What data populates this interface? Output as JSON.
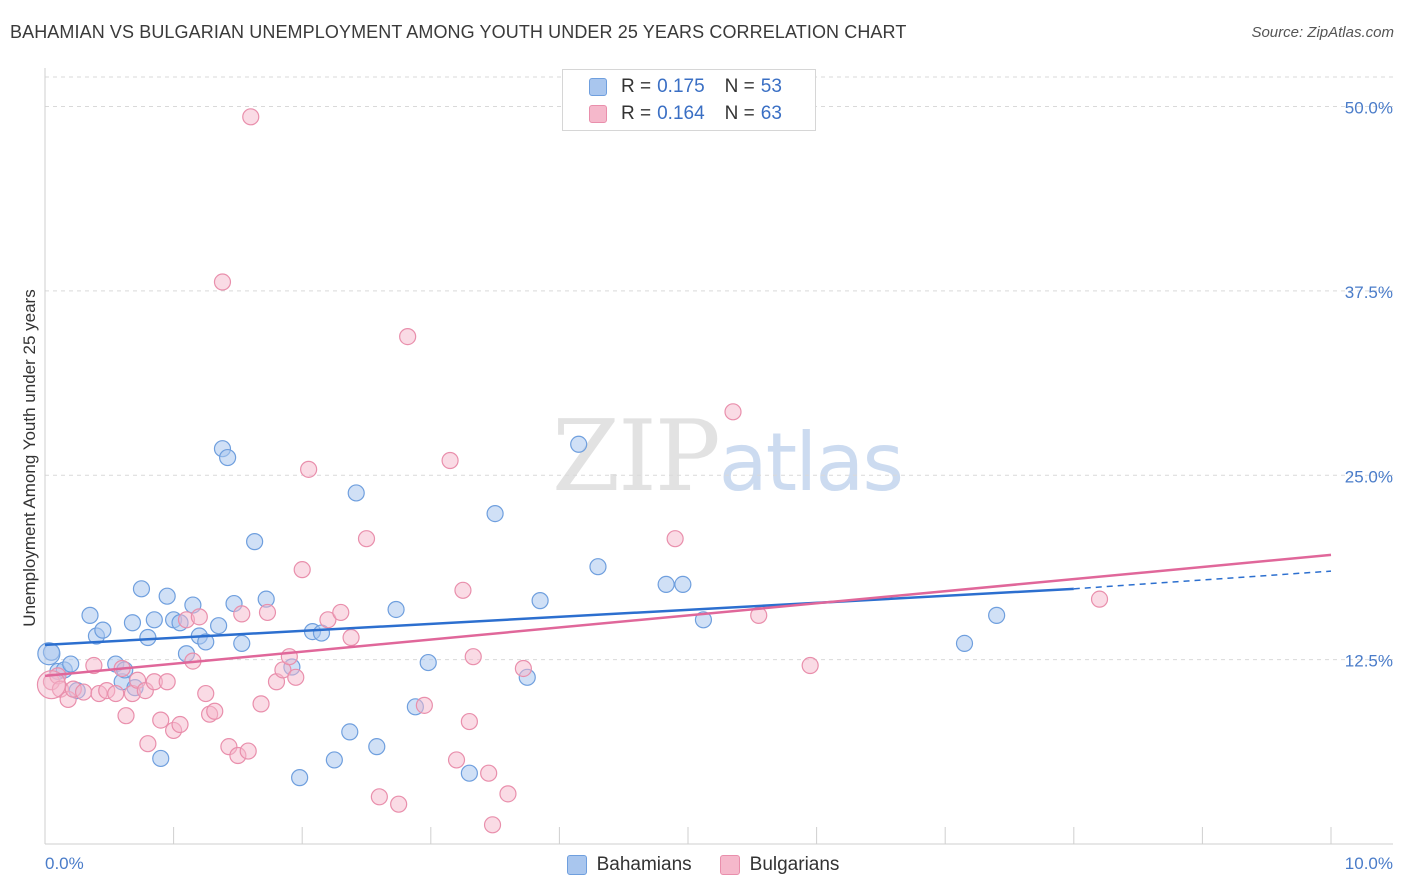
{
  "header": {
    "title": "BAHAMIAN VS BULGARIAN UNEMPLOYMENT AMONG YOUTH UNDER 25 YEARS CORRELATION CHART",
    "source": "Source: ZipAtlas.com"
  },
  "watermark": {
    "zip": "ZIP",
    "atlas": "atlas"
  },
  "legend_top": {
    "rows": [
      {
        "r_label": "R =",
        "r_value": "0.175",
        "n_label": "N =",
        "n_value": "53"
      },
      {
        "r_label": "R =",
        "r_value": "0.164",
        "n_label": "N =",
        "n_value": "63"
      }
    ]
  },
  "legend_bottom": {
    "items": [
      "Bahamians",
      "Bulgarians"
    ]
  },
  "colors": {
    "blue_fill": "#a9c6ee",
    "blue_stroke": "#6f9fde",
    "blue_line": "#2c6fcf",
    "pink_fill": "#f5b8cb",
    "pink_stroke": "#e98fac",
    "pink_line": "#e0679a",
    "tick_text": "#4a7cc9",
    "grid": "#d9d9d9"
  },
  "chart_data": {
    "type": "scatter",
    "title": "BAHAMIAN VS BULGARIAN UNEMPLOYMENT AMONG YOUTH UNDER 25 YEARS CORRELATION CHART",
    "xlabel": "",
    "ylabel": "Unemployment Among Youth under 25 years",
    "xlim": [
      0,
      10
    ],
    "ylim": [
      0,
      52
    ],
    "x_tick_labels": [
      "0.0%",
      "10.0%"
    ],
    "y_ticks": [
      12.5,
      25.0,
      37.5,
      50.0
    ],
    "y_tick_labels": [
      "12.5%",
      "25.0%",
      "37.5%",
      "50.0%"
    ],
    "legend_position": "top-center",
    "series": [
      {
        "name": "Bahamians",
        "r": 0.175,
        "n": 53,
        "trend": {
          "x0": 0,
          "y0": 13.5,
          "x1": 8.0,
          "y1": 17.3,
          "dash_to_x": 10,
          "dash_to_y": 18.5
        },
        "points": [
          [
            0.05,
            13.0
          ],
          [
            0.1,
            11.7
          ],
          [
            0.15,
            11.8
          ],
          [
            0.2,
            12.2
          ],
          [
            0.25,
            10.4
          ],
          [
            0.35,
            15.5
          ],
          [
            0.4,
            14.1
          ],
          [
            0.45,
            14.5
          ],
          [
            0.55,
            12.2
          ],
          [
            0.6,
            11.0
          ],
          [
            0.62,
            11.8
          ],
          [
            0.68,
            15.0
          ],
          [
            0.75,
            17.3
          ],
          [
            0.8,
            14.0
          ],
          [
            0.85,
            15.2
          ],
          [
            0.9,
            5.8
          ],
          [
            0.95,
            16.8
          ],
          [
            1.0,
            15.2
          ],
          [
            1.05,
            15.0
          ],
          [
            1.1,
            12.9
          ],
          [
            1.15,
            16.2
          ],
          [
            1.2,
            14.1
          ],
          [
            1.25,
            13.7
          ],
          [
            1.35,
            14.8
          ],
          [
            1.38,
            26.8
          ],
          [
            1.42,
            26.2
          ],
          [
            1.47,
            16.3
          ],
          [
            1.53,
            13.6
          ],
          [
            1.63,
            20.5
          ],
          [
            1.72,
            16.6
          ],
          [
            1.92,
            12.0
          ],
          [
            1.98,
            4.5
          ],
          [
            2.08,
            14.4
          ],
          [
            2.15,
            14.3
          ],
          [
            2.25,
            5.7
          ],
          [
            2.37,
            7.6
          ],
          [
            2.42,
            23.8
          ],
          [
            2.58,
            6.6
          ],
          [
            2.73,
            15.9
          ],
          [
            2.88,
            9.3
          ],
          [
            2.98,
            12.3
          ],
          [
            3.3,
            4.8
          ],
          [
            3.5,
            22.4
          ],
          [
            3.75,
            11.3
          ],
          [
            3.85,
            16.5
          ],
          [
            4.15,
            27.1
          ],
          [
            4.3,
            18.8
          ],
          [
            4.83,
            17.6
          ],
          [
            4.96,
            17.6
          ],
          [
            5.12,
            15.2
          ],
          [
            7.15,
            13.6
          ],
          [
            7.4,
            15.5
          ],
          [
            0.7,
            10.6
          ]
        ]
      },
      {
        "name": "Bulgarians",
        "r": 0.164,
        "n": 63,
        "trend": {
          "x0": 0,
          "y0": 11.4,
          "x1": 10,
          "y1": 19.6
        },
        "points": [
          [
            0.05,
            11.0
          ],
          [
            0.1,
            11.4
          ],
          [
            0.12,
            10.5
          ],
          [
            0.18,
            9.8
          ],
          [
            0.22,
            10.5
          ],
          [
            0.3,
            10.3
          ],
          [
            0.38,
            12.1
          ],
          [
            0.42,
            10.2
          ],
          [
            0.48,
            10.4
          ],
          [
            0.55,
            10.2
          ],
          [
            0.6,
            11.9
          ],
          [
            0.63,
            8.7
          ],
          [
            0.68,
            10.2
          ],
          [
            0.72,
            11.1
          ],
          [
            0.78,
            10.4
          ],
          [
            0.8,
            6.8
          ],
          [
            0.85,
            11.0
          ],
          [
            0.9,
            8.4
          ],
          [
            0.95,
            11.0
          ],
          [
            1.0,
            7.7
          ],
          [
            1.05,
            8.1
          ],
          [
            1.1,
            15.2
          ],
          [
            1.15,
            12.4
          ],
          [
            1.2,
            15.4
          ],
          [
            1.25,
            10.2
          ],
          [
            1.28,
            8.8
          ],
          [
            1.32,
            9.0
          ],
          [
            1.38,
            38.1
          ],
          [
            1.43,
            6.6
          ],
          [
            1.5,
            6.0
          ],
          [
            1.53,
            15.6
          ],
          [
            1.58,
            6.3
          ],
          [
            1.6,
            49.3
          ],
          [
            1.68,
            9.5
          ],
          [
            1.73,
            15.7
          ],
          [
            1.8,
            11.0
          ],
          [
            1.85,
            11.8
          ],
          [
            1.9,
            12.7
          ],
          [
            1.95,
            11.3
          ],
          [
            2.0,
            18.6
          ],
          [
            2.05,
            25.4
          ],
          [
            2.2,
            15.2
          ],
          [
            2.3,
            15.7
          ],
          [
            2.38,
            14.0
          ],
          [
            2.5,
            20.7
          ],
          [
            2.6,
            3.2
          ],
          [
            2.75,
            2.7
          ],
          [
            2.82,
            34.4
          ],
          [
            2.95,
            9.4
          ],
          [
            3.15,
            26.0
          ],
          [
            3.2,
            5.7
          ],
          [
            3.25,
            17.2
          ],
          [
            3.3,
            8.3
          ],
          [
            3.33,
            12.7
          ],
          [
            3.45,
            4.8
          ],
          [
            3.48,
            1.3
          ],
          [
            3.6,
            3.4
          ],
          [
            3.72,
            11.9
          ],
          [
            4.9,
            20.7
          ],
          [
            5.35,
            29.3
          ],
          [
            5.55,
            15.5
          ],
          [
            5.95,
            12.1
          ],
          [
            8.2,
            16.6
          ]
        ]
      }
    ]
  }
}
